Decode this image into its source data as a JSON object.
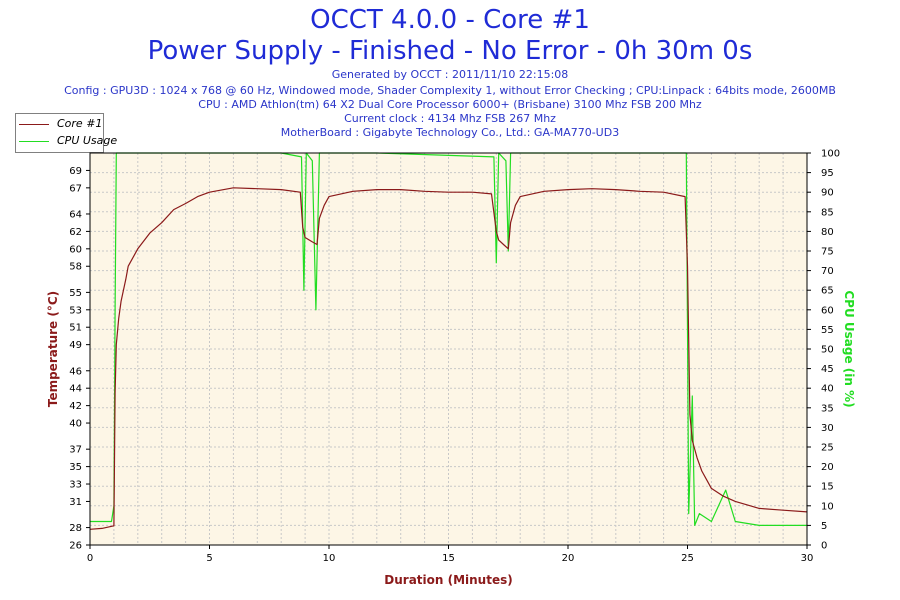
{
  "header": {
    "title1": "OCCT 4.0.0 - Core #1",
    "title2": "Power Supply - Finished - No Error - 0h 30m 0s",
    "generated": "Generated by OCCT : 2011/11/10 22:15:08",
    "config": "Config : GPU3D : 1024 x 768 @ 60 Hz, Windowed mode, Shader Complexity 1, without Error Checking ; CPU:Linpack : 64bits mode, 2600MB",
    "cpu": "CPU : AMD Athlon(tm) 64 X2 Dual Core Processor 6000+ (Brisbane) 3100 Mhz FSB 200 Mhz",
    "clock": "Current clock : 4134 Mhz FSB 267 Mhz",
    "motherboard": "MotherBoard : Gigabyte Technology Co., Ltd.: GA-MA770-UD3"
  },
  "legend": {
    "temp_label": "Core #1",
    "cpu_label": "CPU Usage"
  },
  "colors": {
    "temp": "#8b1a1a",
    "cpu": "#22dd22",
    "plot_bg": "#fdf6e6",
    "grid": "#c8c8c8",
    "ylabel_left": "#8b1a1a",
    "ylabel_right": "#22dd22",
    "xlabel": "#8b1a1a"
  },
  "chart_data": {
    "type": "line",
    "xlabel": "Duration (Minutes)",
    "ylabel": "Temperature (°C)",
    "y2label": "CPU Usage (in %)",
    "xlim": [
      0,
      30
    ],
    "ylim": [
      26,
      71
    ],
    "y2lim": [
      0,
      100
    ],
    "xticks": [
      "0",
      "5",
      "10",
      "15",
      "20",
      "25",
      "30"
    ],
    "yticks": [
      "26",
      "28",
      "31",
      "33",
      "35",
      "37",
      "40",
      "42",
      "44",
      "46",
      "49",
      "51",
      "53",
      "55",
      "58",
      "60",
      "62",
      "64",
      "67",
      "69"
    ],
    "y2ticks": [
      "0",
      "5",
      "10",
      "15",
      "20",
      "25",
      "30",
      "35",
      "40",
      "45",
      "50",
      "55",
      "60",
      "65",
      "70",
      "75",
      "80",
      "85",
      "90",
      "95",
      "100"
    ],
    "grid": true,
    "legend_position": "top-left",
    "series": [
      {
        "name": "Core #1",
        "axis": "left",
        "x": [
          0,
          0.5,
          1.0,
          1.05,
          1.1,
          1.2,
          1.3,
          1.5,
          1.6,
          2.0,
          2.5,
          3.0,
          3.5,
          4.0,
          4.5,
          5.0,
          6.0,
          7.0,
          8.0,
          8.8,
          8.9,
          9.0,
          9.3,
          9.5,
          9.6,
          9.8,
          10.0,
          11.0,
          12.0,
          13.0,
          14.0,
          15.0,
          16.0,
          16.8,
          17.0,
          17.1,
          17.3,
          17.5,
          17.6,
          17.8,
          18.0,
          19.0,
          20.0,
          21.0,
          22.0,
          23.0,
          24.0,
          24.9,
          25.0,
          25.1,
          25.2,
          25.4,
          25.6,
          25.8,
          26.0,
          26.5,
          27.0,
          27.5,
          28.0,
          29.0,
          30.0
        ],
        "values": [
          27.8,
          27.9,
          28.2,
          43.5,
          49.0,
          52.0,
          54.0,
          56.5,
          58.0,
          60.0,
          61.8,
          63.0,
          64.5,
          65.2,
          66.0,
          66.5,
          67.0,
          66.9,
          66.8,
          66.5,
          62.5,
          61.3,
          60.8,
          60.5,
          63.5,
          65.0,
          66.0,
          66.6,
          66.8,
          66.8,
          66.6,
          66.5,
          66.5,
          66.3,
          62.0,
          61.0,
          60.5,
          60.0,
          63.0,
          65.0,
          66.0,
          66.6,
          66.8,
          66.9,
          66.8,
          66.6,
          66.5,
          66.0,
          58.0,
          41.0,
          38.0,
          36.0,
          34.5,
          33.5,
          32.5,
          31.6,
          31.0,
          30.6,
          30.2,
          30.0,
          29.8
        ]
      },
      {
        "name": "CPU Usage",
        "axis": "right",
        "x": [
          0,
          0.9,
          1.0,
          1.05,
          1.1,
          1.5,
          5.0,
          8.0,
          8.85,
          8.95,
          9.05,
          9.3,
          9.45,
          9.6,
          12.0,
          16.9,
          17.0,
          17.1,
          17.4,
          17.5,
          17.6,
          20.0,
          24.95,
          25.0,
          25.05,
          25.2,
          25.3,
          25.5,
          26.0,
          26.6,
          27.0,
          28.0,
          30.0
        ],
        "values": [
          6,
          6,
          10,
          60,
          100,
          100,
          100,
          100,
          99,
          65,
          100,
          98,
          60,
          100,
          100,
          99,
          72,
          100,
          98,
          75,
          100,
          100,
          100,
          55,
          8,
          38,
          5,
          8,
          6,
          14,
          6,
          5,
          5
        ]
      }
    ]
  }
}
